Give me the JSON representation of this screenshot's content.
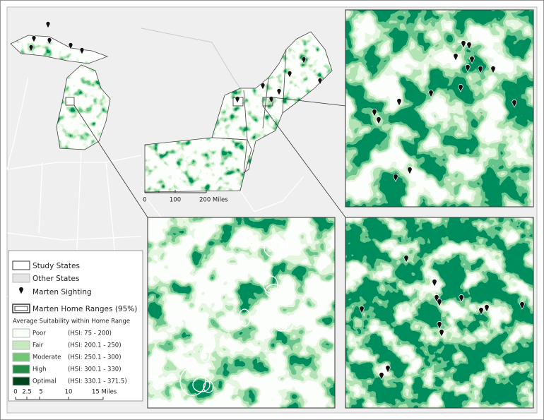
{
  "legend": {
    "items": [
      "Study States",
      "Other States",
      "Marten Sighting",
      "Marten Home Ranges (95%)"
    ],
    "suitability": {
      "title": "Average Suitability within Home Range",
      "classes": [
        {
          "name": "Poor",
          "range": "(HSI: 75 - 200)"
        },
        {
          "name": "Fair",
          "range": "(HSI: 200.1 - 250)"
        },
        {
          "name": "Moderate",
          "range": "(HSI: 250.1 - 300)"
        },
        {
          "name": "High",
          "range": "(HSI: 300.1 - 330)"
        },
        {
          "name": "Optimal",
          "range": "(HSI: 330.1 - 371.5)"
        }
      ]
    }
  },
  "scale_bars": [
    {
      "labels": [
        "0",
        "100",
        "200 Miles"
      ]
    },
    {
      "labels": [
        "0",
        "2.5",
        "5",
        "10",
        "15 Miles"
      ]
    }
  ]
}
